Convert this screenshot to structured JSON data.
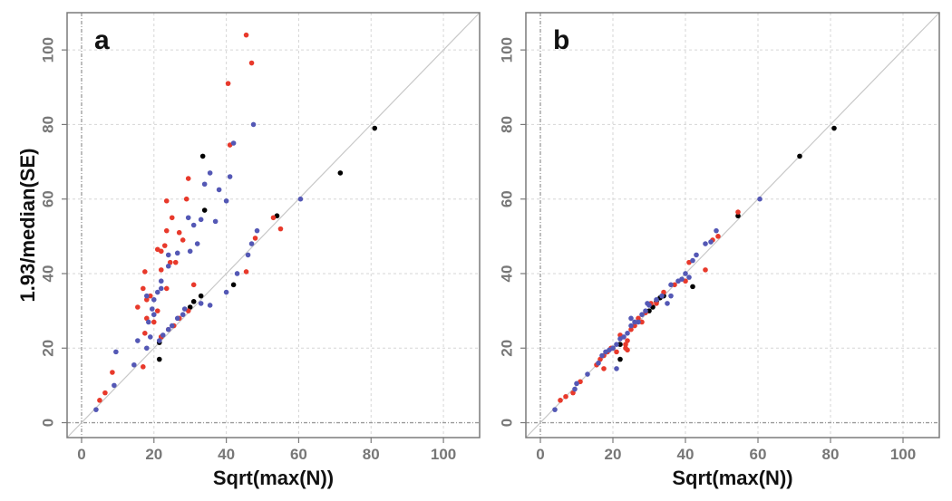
{
  "chart_data": [
    {
      "type": "scatter",
      "panel_label": "a",
      "xlabel": "Sqrt(max(N))",
      "ylabel": "1.93/median(SE)",
      "xlim": [
        -4,
        110
      ],
      "ylim": [
        -4,
        110
      ],
      "xticks": [
        "0",
        "20",
        "40",
        "60",
        "80",
        "100"
      ],
      "yticks": [
        "0",
        "20",
        "40",
        "60",
        "80",
        "100"
      ],
      "grid": true,
      "reference_line": "y = x",
      "series": [
        {
          "color": "#000000",
          "points": [
            [
              81,
              79
            ],
            [
              71.5,
              67
            ],
            [
              54,
              55.5
            ],
            [
              42,
              37
            ],
            [
              34,
              57
            ],
            [
              33.5,
              71.5
            ],
            [
              33,
              34
            ],
            [
              31,
              32.5
            ],
            [
              30,
              31
            ],
            [
              22,
              23
            ],
            [
              21.5,
              21.5
            ],
            [
              21.5,
              17
            ]
          ]
        },
        {
          "color": "#e8392b",
          "points": [
            [
              45.5,
              104
            ],
            [
              47,
              96.5
            ],
            [
              40.5,
              91
            ],
            [
              41,
              74.5
            ],
            [
              29.5,
              65.5
            ],
            [
              25,
              55
            ],
            [
              29,
              60
            ],
            [
              23.5,
              59.5
            ],
            [
              27,
              51
            ],
            [
              23.5,
              51.5
            ],
            [
              23,
              47.5
            ],
            [
              21,
              46.5
            ],
            [
              22,
              41
            ],
            [
              23.5,
              36
            ],
            [
              17.5,
              40.5
            ],
            [
              17,
              36
            ],
            [
              19,
              34
            ],
            [
              18,
              33
            ],
            [
              21,
              30
            ],
            [
              15.5,
              31
            ],
            [
              18,
              28
            ],
            [
              20,
              27
            ],
            [
              17.5,
              24
            ],
            [
              22,
              23
            ],
            [
              24,
              25
            ],
            [
              25.5,
              26
            ],
            [
              27,
              28
            ],
            [
              29.5,
              30
            ],
            [
              17,
              15
            ],
            [
              8.5,
              13.5
            ],
            [
              6.5,
              8
            ],
            [
              5,
              6
            ],
            [
              45.5,
              40.5
            ],
            [
              48,
              49.5
            ],
            [
              55,
              52
            ],
            [
              53,
              55
            ],
            [
              22,
              46
            ],
            [
              26,
              43
            ],
            [
              28,
              49
            ],
            [
              31,
              37
            ],
            [
              24.5,
              43
            ]
          ]
        },
        {
          "color": "#5458b5",
          "points": [
            [
              47.5,
              80
            ],
            [
              42,
              75
            ],
            [
              41,
              66
            ],
            [
              40,
              59.5
            ],
            [
              38,
              62.5
            ],
            [
              35.5,
              67
            ],
            [
              34,
              64
            ],
            [
              33,
              54.5
            ],
            [
              37,
              54
            ],
            [
              31,
              53
            ],
            [
              29.5,
              55
            ],
            [
              32,
              48
            ],
            [
              30,
              46
            ],
            [
              26.5,
              45.5
            ],
            [
              24,
              45
            ],
            [
              24,
              42
            ],
            [
              22,
              38
            ],
            [
              22,
              36
            ],
            [
              21,
              35
            ],
            [
              20,
              33
            ],
            [
              19.5,
              30.5
            ],
            [
              20,
              29
            ],
            [
              18,
              34
            ],
            [
              18.5,
              27
            ],
            [
              19,
              23
            ],
            [
              15.5,
              22
            ],
            [
              18,
              20
            ],
            [
              9.5,
              19
            ],
            [
              14.5,
              15.5
            ],
            [
              9,
              10
            ],
            [
              4,
              3.5
            ],
            [
              21.5,
              22
            ],
            [
              22.5,
              23.5
            ],
            [
              24,
              25
            ],
            [
              25,
              26
            ],
            [
              26.5,
              28
            ],
            [
              28,
              29
            ],
            [
              28.5,
              30.5
            ],
            [
              33,
              32
            ],
            [
              35.5,
              31.5
            ],
            [
              40,
              35
            ],
            [
              43,
              40
            ],
            [
              46,
              45
            ],
            [
              47,
              48
            ],
            [
              48.5,
              51.5
            ],
            [
              60.5,
              60
            ]
          ]
        }
      ]
    },
    {
      "type": "scatter",
      "panel_label": "b",
      "xlabel": "Sqrt(max(N))",
      "ylabel": "",
      "xlim": [
        -4,
        110
      ],
      "ylim": [
        -4,
        110
      ],
      "xticks": [
        "0",
        "20",
        "40",
        "60",
        "80",
        "100"
      ],
      "yticks": [
        "0",
        "20",
        "40",
        "60",
        "80",
        "100"
      ],
      "grid": true,
      "reference_line": "y = x",
      "series": [
        {
          "color": "#000000",
          "points": [
            [
              81,
              79
            ],
            [
              71.5,
              71.5
            ],
            [
              54.5,
              55.5
            ],
            [
              42,
              36.5
            ],
            [
              34,
              34
            ],
            [
              33,
              33.5
            ],
            [
              32,
              32.5
            ],
            [
              31,
              31
            ],
            [
              30,
              30
            ],
            [
              22,
              21
            ],
            [
              22,
              17
            ],
            [
              20,
              20
            ]
          ]
        },
        {
          "color": "#e8392b",
          "points": [
            [
              54.5,
              56.5
            ],
            [
              47.5,
              49
            ],
            [
              45.5,
              41
            ],
            [
              41,
              43
            ],
            [
              37,
              37
            ],
            [
              34,
              35
            ],
            [
              30.5,
              32
            ],
            [
              29,
              29.5
            ],
            [
              27,
              28
            ],
            [
              25,
              25
            ],
            [
              24,
              22
            ],
            [
              23.5,
              20
            ],
            [
              22,
              23.5
            ],
            [
              21,
              19
            ],
            [
              19.5,
              20
            ],
            [
              18.5,
              19
            ],
            [
              17.5,
              18
            ],
            [
              16.5,
              17
            ],
            [
              17.5,
              14.5
            ],
            [
              15.5,
              15.5
            ],
            [
              11,
              11
            ],
            [
              9,
              8
            ],
            [
              7,
              7
            ],
            [
              5.5,
              6
            ],
            [
              24,
              19.5
            ],
            [
              23.5,
              21
            ],
            [
              26,
              26
            ],
            [
              28,
              27
            ],
            [
              32,
              32
            ],
            [
              40,
              38
            ],
            [
              49,
              50
            ]
          ]
        },
        {
          "color": "#5458b5",
          "points": [
            [
              60.5,
              60
            ],
            [
              48.5,
              51.5
            ],
            [
              47,
              48.5
            ],
            [
              45.5,
              48
            ],
            [
              43,
              45
            ],
            [
              42,
              43.5
            ],
            [
              41,
              39
            ],
            [
              39,
              38.5
            ],
            [
              38,
              38
            ],
            [
              36,
              37
            ],
            [
              35,
              32
            ],
            [
              33.5,
              34
            ],
            [
              32,
              33
            ],
            [
              30,
              31.5
            ],
            [
              29,
              30
            ],
            [
              28,
              29
            ],
            [
              27,
              27
            ],
            [
              26,
              27
            ],
            [
              25,
              26
            ],
            [
              24,
              24
            ],
            [
              23,
              23
            ],
            [
              22,
              22.5
            ],
            [
              21,
              21
            ],
            [
              20,
              20
            ],
            [
              19,
              19.5
            ],
            [
              18,
              19
            ],
            [
              17,
              18
            ],
            [
              21,
              14.5
            ],
            [
              16,
              16
            ],
            [
              13,
              13
            ],
            [
              10,
              10.5
            ],
            [
              9.5,
              9
            ],
            [
              4,
              3.5
            ],
            [
              25,
              28
            ],
            [
              29.5,
              32
            ],
            [
              36,
              34
            ],
            [
              40,
              40
            ]
          ]
        }
      ]
    }
  ]
}
